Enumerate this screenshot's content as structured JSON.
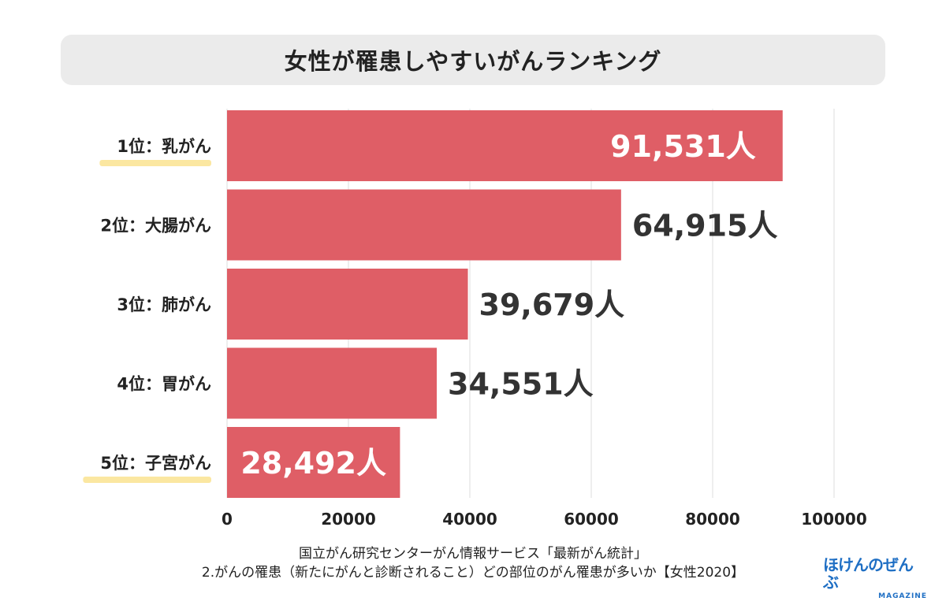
{
  "chart_data": {
    "type": "bar",
    "orientation": "horizontal",
    "title": "女性が罹患しやすいがんランキング",
    "categories": [
      "1位：乳がん",
      "2位：大腸がん",
      "3位：肺がん",
      "4位：胃がん",
      "5位：子宮がん"
    ],
    "values": [
      91531,
      64915,
      39679,
      34551,
      28492
    ],
    "value_labels": [
      "91,531人",
      "64,915人",
      "39,679人",
      "34,551人",
      "28,492人"
    ],
    "xlim": [
      0,
      100000
    ],
    "xticks": [
      0,
      20000,
      40000,
      60000,
      80000,
      100000
    ],
    "xtick_labels": [
      "0",
      "20000",
      "40000",
      "60000",
      "80000",
      "100000"
    ],
    "grid": "vertical",
    "highlighted_categories": [
      0,
      4
    ]
  },
  "caption": {
    "line1": "国立がん研究センターがん情報サービス「最新がん統計」",
    "line2": "2.がんの罹患（新たにがんと診断されること）どの部位のがん罹患が多いか【女性2020】"
  },
  "logo": {
    "main": "ほけんのぜんぶ",
    "sub": "MAGAZINE"
  },
  "colors": {
    "bar": "#df5e66",
    "highlight_underline": "#fbe7a1",
    "grid": "#dddddd",
    "title_bg": "#ebebeb",
    "logo": "#1f6fc4"
  }
}
